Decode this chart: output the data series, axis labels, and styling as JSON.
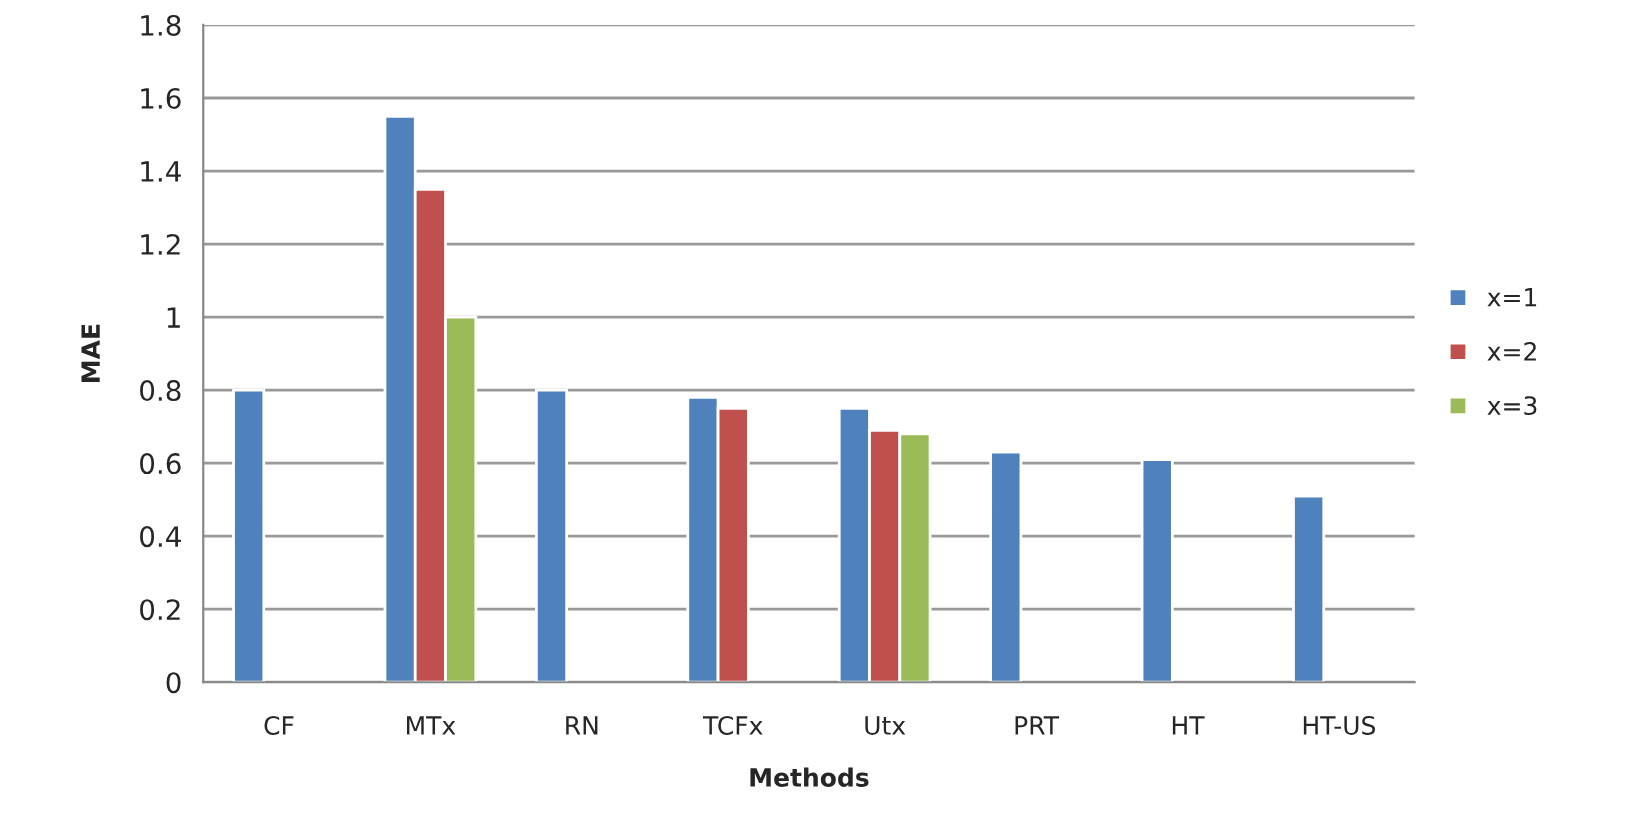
{
  "chart_data": {
    "type": "bar",
    "xlabel": "Methods",
    "ylabel": "MAE",
    "categories": [
      "CF",
      "MTx",
      "RN",
      "TCFx",
      "Utx",
      "PRT",
      "HT",
      "HT-US"
    ],
    "series": [
      {
        "name": "x=1",
        "color": "#4f81bd",
        "values": [
          0.8,
          1.55,
          0.8,
          0.78,
          0.75,
          0.63,
          0.61,
          0.51
        ]
      },
      {
        "name": "x=2",
        "color": "#c0504d",
        "values": [
          null,
          1.35,
          null,
          0.75,
          0.69,
          null,
          null,
          null
        ]
      },
      {
        "name": "x=3",
        "color": "#9bbb59",
        "values": [
          null,
          1.0,
          null,
          null,
          0.68,
          null,
          null,
          null
        ]
      }
    ],
    "ylim": [
      0,
      1.8
    ],
    "yticks": [
      0,
      0.2,
      0.4,
      0.6,
      0.8,
      1,
      1.2,
      1.4,
      1.6,
      1.8
    ],
    "grid": "y",
    "legend": "right"
  }
}
